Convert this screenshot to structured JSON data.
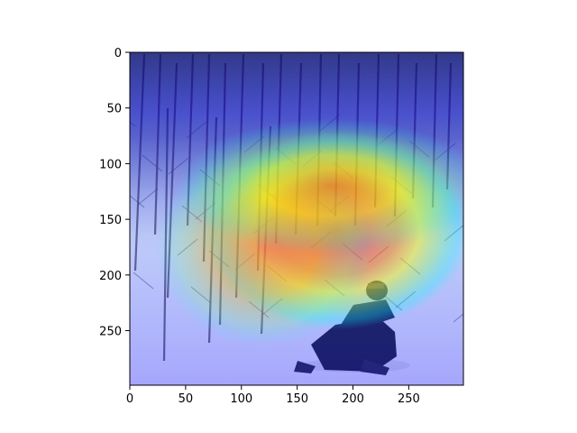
{
  "chart_data": {
    "type": "heatmap",
    "title": "",
    "xlabel": "",
    "ylabel": "",
    "xlim": [
      0,
      299
    ],
    "ylim": [
      299,
      0
    ],
    "x_ticks": [
      0,
      50,
      100,
      150,
      200,
      250
    ],
    "y_ticks": [
      0,
      50,
      100,
      150,
      200,
      250
    ],
    "grid": false,
    "colormap": "jet",
    "overlay_alpha": 0.5,
    "background_image": "snowy-forest-snowmobile-photo",
    "hotspots": [
      {
        "x": 185,
        "y": 160,
        "intensity": 1.0
      },
      {
        "x": 120,
        "y": 175,
        "intensity": 0.8
      },
      {
        "x": 180,
        "y": 120,
        "intensity": 0.65
      }
    ],
    "colors": {
      "jet_low": "#00007f",
      "jet_blue": "#0000ff",
      "jet_cyan": "#00ffff",
      "jet_green": "#7fff7f",
      "jet_yellow": "#ffff00",
      "jet_orange": "#ff8000",
      "jet_red": "#ff0000"
    }
  }
}
